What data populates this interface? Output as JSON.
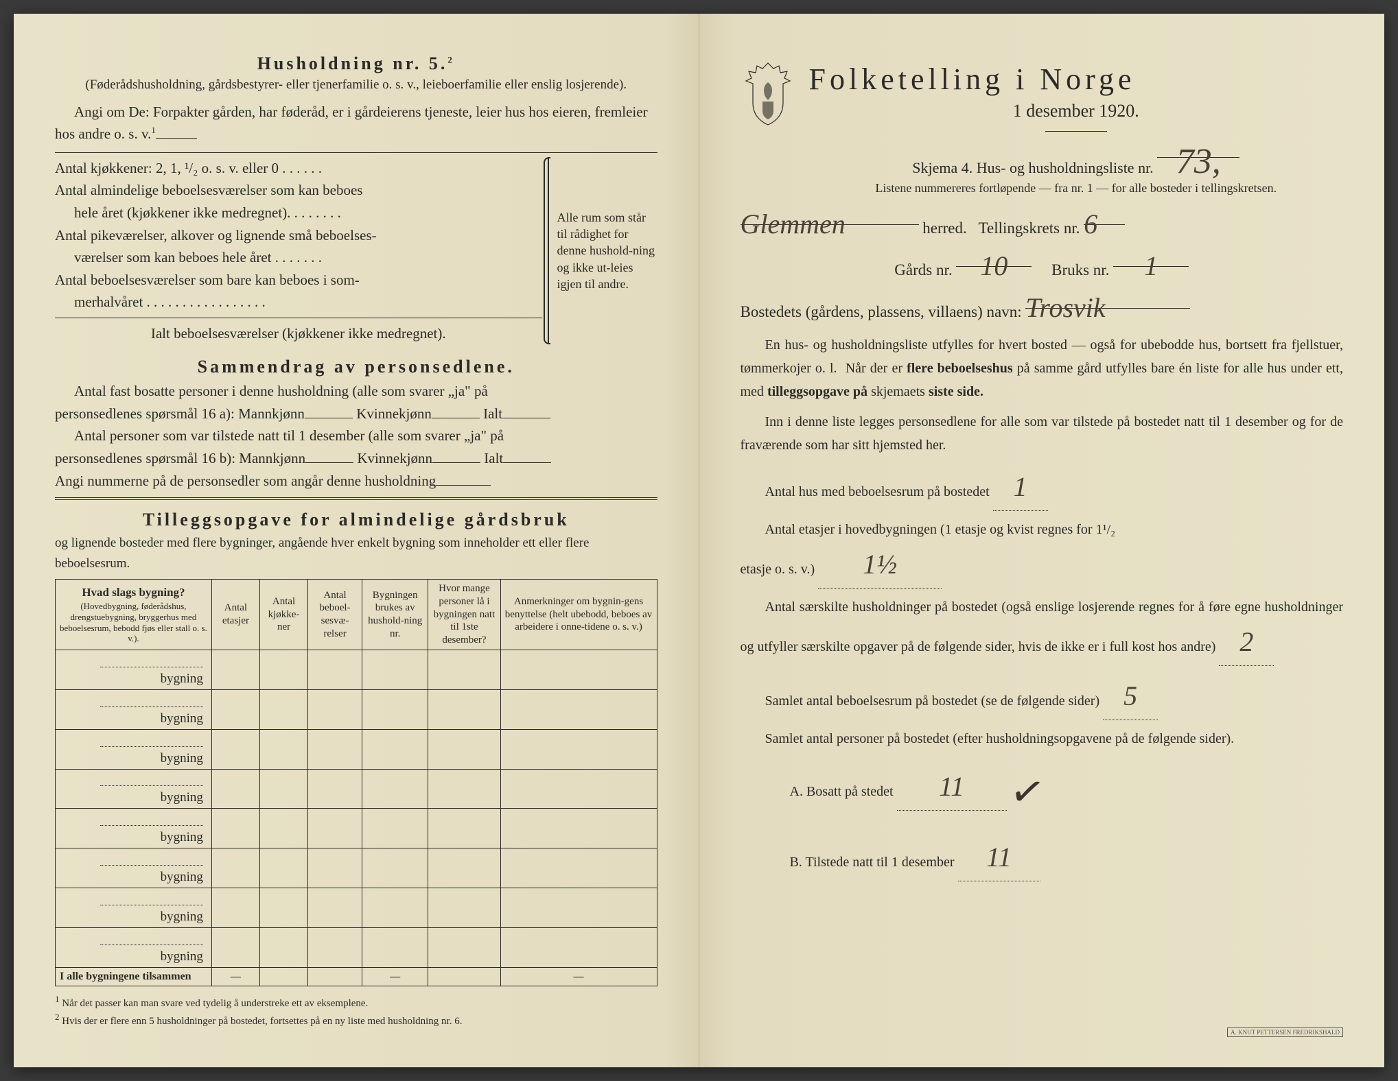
{
  "left": {
    "heading": "Husholdning nr. 5.",
    "heading_sup": "2",
    "sub": "(Føderådshusholdning, gårdsbestyrer- eller tjenerfamilie o. s. v., leieboerfamilie eller enslig losjerende).",
    "angi": "Angi om De: Forpakter gården, har føderåd, er i gårdeierens tjeneste, leier hus hos eieren, fremleier hos andre o. s. v.",
    "angi_sup": "1",
    "rooms": {
      "l1": "Antal kjøkkener: 2, 1, ¹/₂ o. s. v. eller 0 . . . . . .",
      "l2a": "Antal almindelige beboelsesværelser som kan beboes",
      "l2b": "hele året (kjøkkener ikke medregnet). . . . . . . .",
      "l3a": "Antal pikeværelser, alkover og lignende små beboelses-",
      "l3b": "værelser som kan beboes hele året . . . . . . .",
      "l4a": "Antal beboelsesværelser som bare kan beboes i som-",
      "l4b": "merhalvåret . . . . . . . . . . . . . . . . .",
      "total": "Ialt beboelsesværelser  (kjøkkener ikke medregnet).",
      "brace": "Alle rum som står til rådighet for denne hushold-ning og ikke ut-leies igjen til andre."
    },
    "sammendrag": {
      "title": "Sammendrag av personsedlene.",
      "p1a": "Antal fast bosatte personer i denne husholdning (alle som svarer „ja\" på",
      "p1b": "personsedlenes spørsmål 16 a): Mannkjønn",
      "p1c": "Kvinnekjønn",
      "p1d": "Ialt",
      "p2a": "Antal personer som var tilstede natt til 1 desember (alle som svarer „ja\" på",
      "p2b": "personsedlenes spørsmål 16 b): Mannkjønn",
      "p3": "Angi nummerne på de personsedler som angår denne husholdning"
    },
    "tillegg": {
      "title": "Tilleggsopgave for almindelige gårdsbruk",
      "sub": "og lignende bosteder med flere bygninger, angående hver enkelt bygning som inneholder ett eller flere beboelsesrum.",
      "th1": "Hvad slags bygning?",
      "th1sub": "(Hovedbygning, føderådshus, drengstuebygning, bryggerhus med beboelsesrum, bebodd fjøs eller stall o. s. v.).",
      "th2": "Antal etasjer",
      "th3": "Antal kjøkke-ner",
      "th4": "Antal beboel-sesvæ-relser",
      "th5": "Bygningen brukes av hushold-ning nr.",
      "th6": "Hvor mange personer lå i bygningen natt til 1ste desember?",
      "th7": "Anmerkninger om bygnin-gens benyttelse (helt ubebodd, beboes av arbeidere i onne-tidene o. s. v.)",
      "rowlabel": "bygning",
      "total": "I alle bygningene tilsammen"
    },
    "fn1": "Når det passer kan man svare ved tydelig å understreke ett av eksemplene.",
    "fn2": "Hvis der er flere enn 5 husholdninger på bostedet, fortsettes på en ny liste med husholdning nr. 6."
  },
  "right": {
    "title": "Folketelling i Norge",
    "date": "1 desember 1920.",
    "skjema": "Skjema 4.  Hus- og husholdningsliste nr.",
    "skjema_val": "73,",
    "listnote": "Listene nummereres fortløpende — fra nr. 1 — for alle bosteder i tellingskretsen.",
    "herred_val": "Glemmen",
    "herred_lbl": "herred.",
    "krets_lbl": "Tellingskrets nr.",
    "krets_val": "6",
    "gard_lbl": "Gårds nr.",
    "gard_val": "10",
    "bruk_lbl": "Bruks nr.",
    "bruk_val": "1",
    "bosted_lbl": "Bostedets (gårdens, plassens, villaens) navn:",
    "bosted_val": "Trosvik",
    "para1": "En hus- og husholdningsliste utfylles for hvert bosted — også for ubebodde hus, bortsett fra fjellstuer, tømmerkojer o. l.  Når der er flere beboelseshus på samme gård utfylles bare én liste for alle hus under ett, med tilleggsopgave på skjemaets siste side.",
    "para2": "Inn i denne liste legges personsedlene for alle som var tilstede på bostedet natt til 1 desember og for de fraværende som har sitt hjemsted her.",
    "q1": "Antal hus med beboelsesrum på bostedet",
    "q1_val": "1",
    "q2a": "Antal etasjer i hovedbygningen (1 etasje og kvist regnes for 1¹/₂",
    "q2b": "etasje o. s. v.)",
    "q2_val": "1½",
    "q3": "Antal særskilte husholdninger på bostedet (også enslige losjerende regnes for å føre egne husholdninger og utfyller særskilte opgaver på de følgende sider, hvis de ikke er i full kost hos andre)",
    "q3_val": "2",
    "q4": "Samlet antal beboelsesrum på bostedet (se de følgende sider)",
    "q4_val": "5",
    "q5": "Samlet antal personer på bostedet (efter husholdningsopgavene på de følgende sider).",
    "qA": "A.  Bosatt på stedet",
    "qA_val": "11",
    "qB": "B.  Tilstede natt til 1 desember",
    "qB_val": "11",
    "stamp": "A. KNUT PETTERSEN FREDRIKSHALD"
  },
  "colors": {
    "paper": "#e8e2c8",
    "ink": "#2a2a28",
    "handwriting": "#3b3530"
  }
}
